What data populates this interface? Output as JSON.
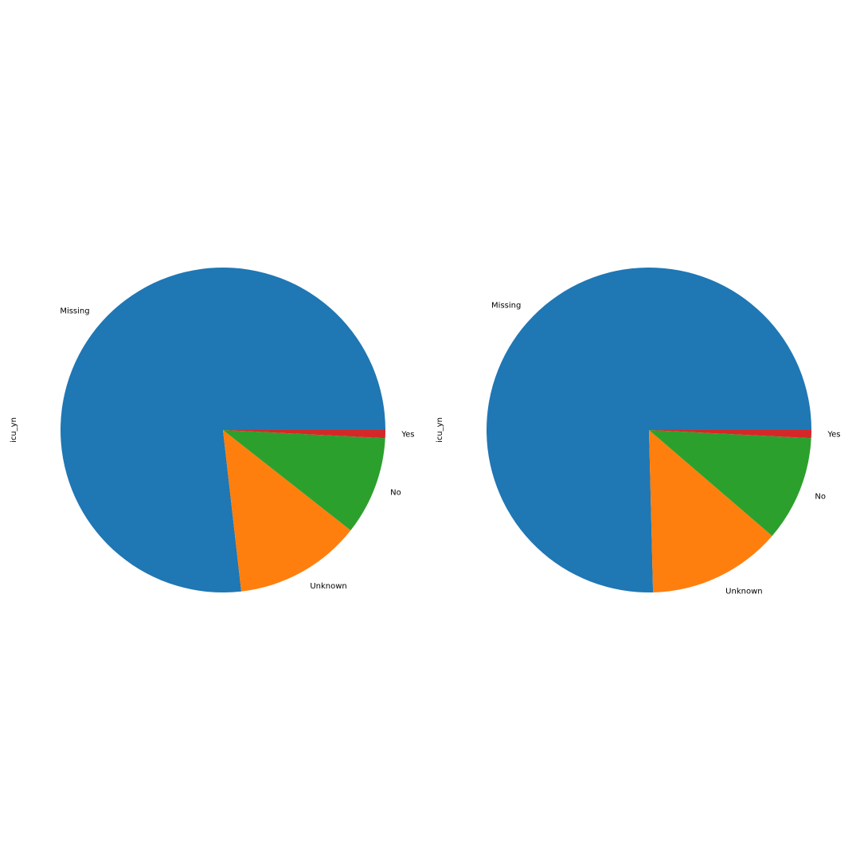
{
  "chart_data": [
    {
      "type": "pie",
      "ylabel": "icu_yn",
      "start_angle_deg": 0,
      "direction": "counterclockwise",
      "slices": [
        {
          "label": "Missing",
          "value": 76.8,
          "color": "#1f77b4"
        },
        {
          "label": "Unknown",
          "value": 12.6,
          "color": "#ff7f0e"
        },
        {
          "label": "No",
          "value": 9.8,
          "color": "#2ca02c"
        },
        {
          "label": "Yes",
          "value": 0.8,
          "color": "#d62728"
        }
      ]
    },
    {
      "type": "pie",
      "ylabel": "icu_yn",
      "start_angle_deg": 0,
      "direction": "counterclockwise",
      "slices": [
        {
          "label": "Missing",
          "value": 75.4,
          "color": "#1f77b4"
        },
        {
          "label": "Unknown",
          "value": 13.3,
          "color": "#ff7f0e"
        },
        {
          "label": "No",
          "value": 10.5,
          "color": "#2ca02c"
        },
        {
          "label": "Yes",
          "value": 0.8,
          "color": "#d62728"
        }
      ]
    }
  ]
}
